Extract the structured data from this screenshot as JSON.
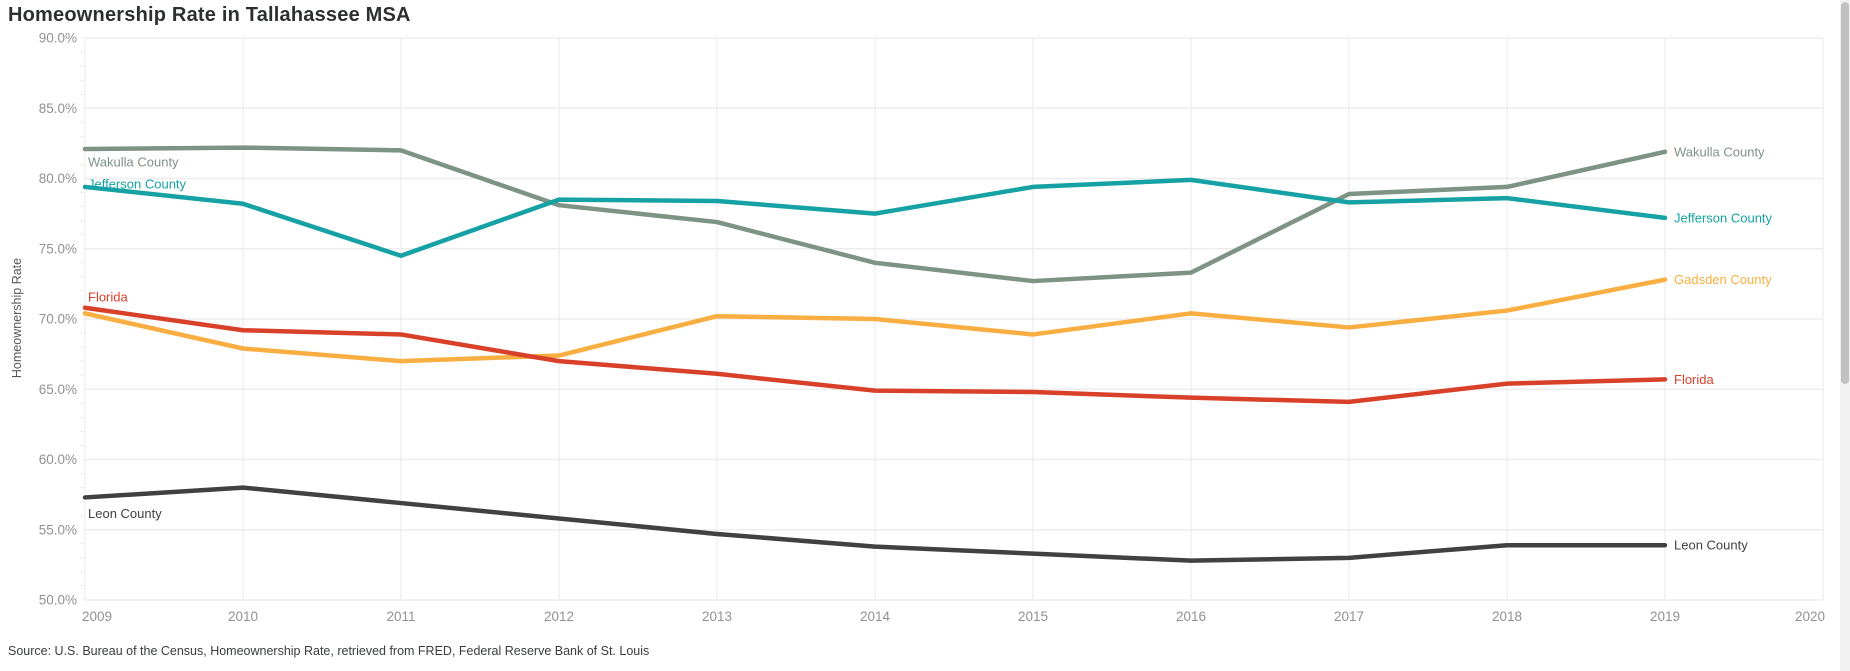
{
  "page": {
    "title": "Homeownership Rate in Tallahassee MSA",
    "source_note": "Source: U.S. Bureau of the Census, Homeownership Rate, retrieved from FRED, Federal Reserve Bank of St. Louis"
  },
  "chart_data": {
    "type": "line",
    "title": "Homeownership Rate in Tallahassee MSA",
    "xlabel": "",
    "ylabel": "Homeownership Rate",
    "x": [
      2009,
      2010,
      2011,
      2012,
      2013,
      2014,
      2015,
      2016,
      2017,
      2018,
      2019
    ],
    "x_ticks": [
      "2009",
      "2010",
      "2011",
      "2012",
      "2013",
      "2014",
      "2015",
      "2016",
      "2017",
      "2018",
      "2019",
      "2020"
    ],
    "xlim": [
      2009,
      2020
    ],
    "ylim": [
      50,
      90
    ],
    "y_ticks": [
      {
        "value": 90,
        "label": "90.0%"
      },
      {
        "value": 85,
        "label": "85.0%"
      },
      {
        "value": 80,
        "label": "80.0%"
      },
      {
        "value": 75,
        "label": "75.0%"
      },
      {
        "value": 70,
        "label": "70.0%"
      },
      {
        "value": 65,
        "label": "65.0%"
      },
      {
        "value": 60,
        "label": "60.0%"
      },
      {
        "value": 55,
        "label": "55.0%"
      },
      {
        "value": 50,
        "label": "50.0%"
      }
    ],
    "grid": true,
    "legend_position": "inline line-start and line-end labels",
    "series": [
      {
        "name": "Wakulla County",
        "color": "#7D9384",
        "values": [
          82.1,
          82.2,
          82.0,
          78.1,
          76.9,
          74.0,
          72.7,
          73.3,
          78.9,
          79.4,
          81.9
        ],
        "label_left": true,
        "left_label_dy": 13,
        "label_right": true
      },
      {
        "name": "Jefferson County",
        "color": "#16A2A4",
        "values": [
          79.4,
          78.2,
          74.5,
          78.5,
          78.4,
          77.5,
          79.4,
          79.9,
          78.3,
          78.6,
          77.2
        ],
        "label_left": true,
        "left_label_dy": -3,
        "label_right": true
      },
      {
        "name": "Gadsden County",
        "color": "#F9AE41",
        "values": [
          70.4,
          67.9,
          67.0,
          67.4,
          70.2,
          70.0,
          68.9,
          70.4,
          69.4,
          70.6,
          72.8
        ],
        "label_left": false,
        "left_label_dy": 0,
        "label_right": true
      },
      {
        "name": "Florida",
        "color": "#D8402A",
        "values": [
          70.8,
          69.2,
          68.9,
          67.0,
          66.1,
          64.9,
          64.8,
          64.4,
          64.1,
          65.4,
          65.7
        ],
        "label_left": true,
        "left_label_dy": -11,
        "label_right": true
      },
      {
        "name": "Leon County",
        "color": "#414141",
        "values": [
          57.3,
          58.0,
          56.9,
          55.8,
          54.7,
          53.8,
          53.3,
          52.8,
          53.0,
          53.9,
          53.9
        ],
        "label_left": true,
        "left_label_dy": 16,
        "label_right": true
      }
    ]
  }
}
